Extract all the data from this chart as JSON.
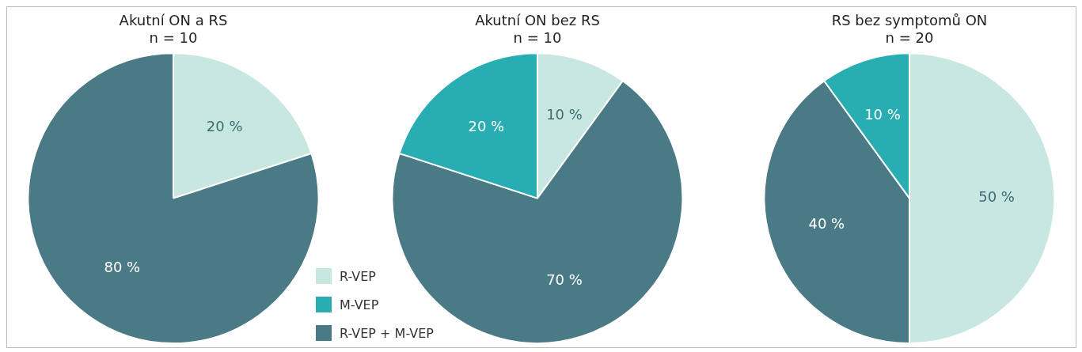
{
  "chart_data": [
    {
      "type": "pie",
      "title": "Akutní ON a RS",
      "subtitle": "n = 10",
      "categories": [
        "R-VEP",
        "R-VEP + M-VEP",
        "M-VEP"
      ],
      "values": [
        20,
        80,
        0
      ],
      "colors": [
        "#c8e7e1",
        "#4a7a85",
        "#27adb2"
      ],
      "value_labels": [
        "20 %",
        "80 %",
        null
      ],
      "legend": "bottom right"
    },
    {
      "type": "pie",
      "title": "Akutní ON bez RS",
      "subtitle": "n = 10",
      "categories": [
        null,
        null,
        null
      ],
      "values": [
        10,
        70,
        20
      ],
      "colors": [
        "#c8e7e1",
        "#4a7a85",
        "#27adb2"
      ],
      "value_labels": [
        "10 %",
        "70 %",
        "20 %"
      ]
    },
    {
      "type": "pie",
      "title": "RS bez symptomů ON",
      "subtitle": "n = 20",
      "categories": [
        null,
        null,
        null
      ],
      "values": [
        50,
        40,
        10
      ],
      "colors": [
        "#c8e7e1",
        "#4a7a85",
        "#27adb2"
      ],
      "value_labels": [
        "50 %",
        "40 %",
        "10 %"
      ]
    }
  ]
}
